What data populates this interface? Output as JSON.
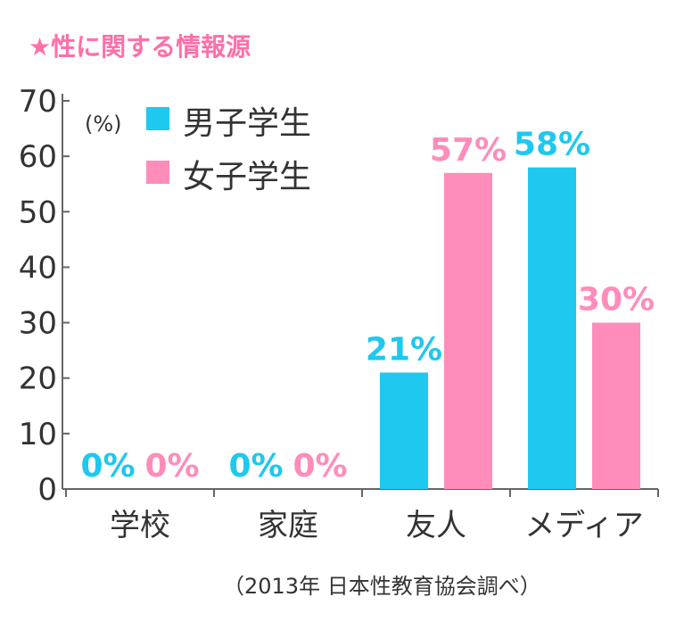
{
  "chart_data": {
    "type": "bar",
    "title": "★性に関する情報源",
    "unit_label": "(%)",
    "categories": [
      "学校",
      "家庭",
      "友人",
      "メディア"
    ],
    "series": [
      {
        "name": "男子学生",
        "values": [
          0,
          0,
          21,
          58
        ],
        "color": "#1ec8ee"
      },
      {
        "name": "女子学生",
        "values": [
          0,
          0,
          57,
          30
        ],
        "color": "#ff8cba"
      }
    ],
    "data_labels": [
      [
        "0%",
        "0%",
        "21%",
        "58%"
      ],
      [
        "0%",
        "0%",
        "57%",
        "30%"
      ]
    ],
    "yticks": [
      "0",
      "10",
      "20",
      "30",
      "40",
      "50",
      "60",
      "70"
    ],
    "ylim": [
      0,
      70
    ],
    "grid": false,
    "legend_position": "top-left",
    "source": "（2013年 日本性教育協会調べ）",
    "title_color": "#ff6fa8"
  }
}
